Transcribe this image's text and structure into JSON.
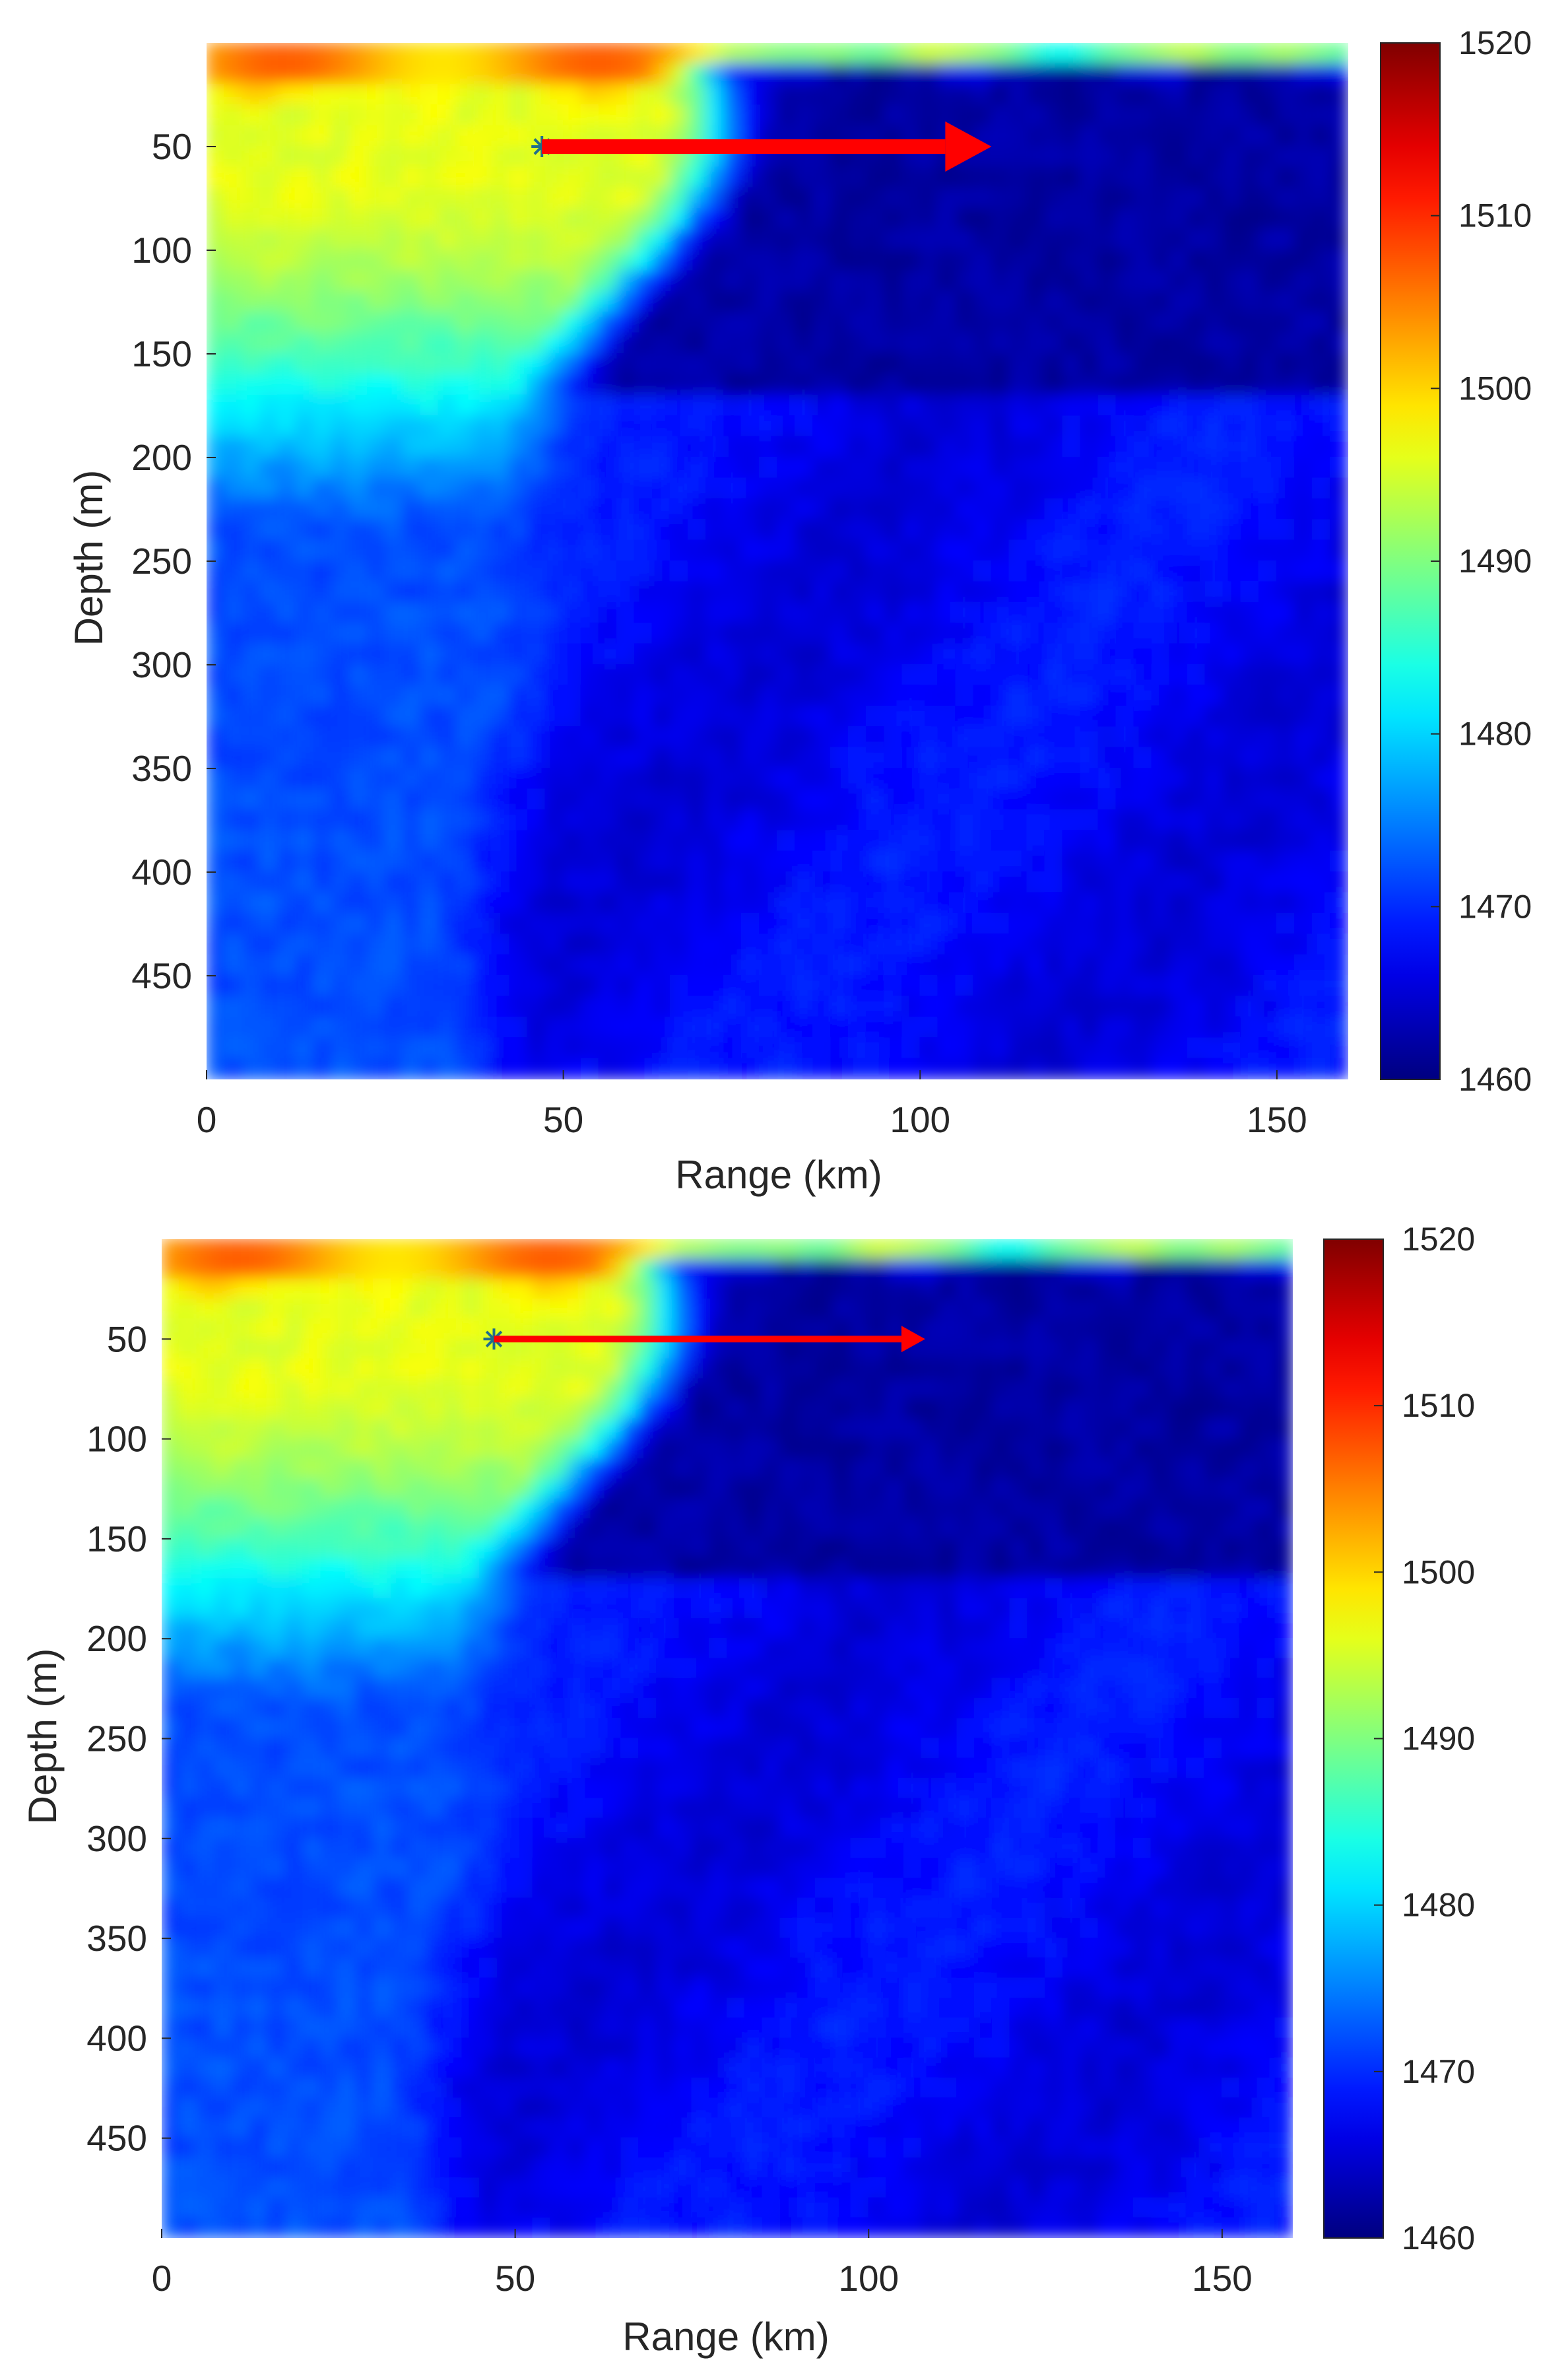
{
  "chart_data": [
    {
      "type": "heatmap",
      "xlabel": "Range (km)",
      "ylabel": "Depth (m)",
      "xlim": [
        0,
        160
      ],
      "ylim": [
        500,
        0
      ],
      "y_reversed": true,
      "x_ticks": [
        "0",
        "50",
        "100",
        "150"
      ],
      "x_tick_values": [
        0,
        50,
        100,
        150
      ],
      "y_ticks": [
        "50",
        "100",
        "150",
        "200",
        "250",
        "300",
        "350",
        "400",
        "450"
      ],
      "y_tick_values": [
        50,
        100,
        150,
        200,
        250,
        300,
        350,
        400,
        450
      ],
      "colorbar": {
        "colormap": "jet",
        "range": [
          1460,
          1520
        ],
        "ticks": [
          "1460",
          "1470",
          "1480",
          "1490",
          "1500",
          "1510",
          "1520"
        ],
        "tick_values": [
          1460,
          1470,
          1480,
          1490,
          1500,
          1510,
          1520
        ]
      },
      "field": {
        "surface_layer": {
          "depth_max": 25,
          "x_end": 75,
          "value": 1503
        },
        "warm_front": {
          "x_start": 0,
          "x_end": 70,
          "value_core": 1496
        },
        "cold_water": {
          "x_start": 70,
          "x_end": 160,
          "value": 1462
        },
        "deep_water": {
          "value": 1468
        }
      },
      "source_marker": {
        "x": 47,
        "y": 50,
        "symbol": "*",
        "color": "#1f6f8b"
      },
      "arrow": {
        "x_start": 47,
        "x_end": 110,
        "y": 50,
        "color": "#ff0000"
      }
    },
    {
      "type": "heatmap",
      "xlabel": "Range (km)",
      "ylabel": "Depth (m)",
      "xlim": [
        0,
        160
      ],
      "ylim": [
        500,
        0
      ],
      "y_reversed": true,
      "x_ticks": [
        "0",
        "50",
        "100",
        "150"
      ],
      "x_tick_values": [
        0,
        50,
        100,
        150
      ],
      "y_ticks": [
        "50",
        "100",
        "150",
        "200",
        "250",
        "300",
        "350",
        "400",
        "450"
      ],
      "y_tick_values": [
        50,
        100,
        150,
        200,
        250,
        300,
        350,
        400,
        450
      ],
      "colorbar": {
        "colormap": "jet",
        "range": [
          1460,
          1520
        ],
        "ticks": [
          "1460",
          "1470",
          "1480",
          "1490",
          "1500",
          "1510",
          "1520"
        ],
        "tick_values": [
          1460,
          1470,
          1480,
          1490,
          1500,
          1510,
          1520
        ]
      },
      "field": {
        "surface_layer": {
          "depth_max": 25,
          "x_end": 75,
          "value": 1503
        },
        "warm_front": {
          "x_start": 0,
          "x_end": 70,
          "value_core": 1496
        },
        "cold_water": {
          "x_start": 70,
          "x_end": 160,
          "value": 1462
        },
        "deep_water": {
          "value": 1468
        }
      },
      "source_marker": {
        "x": 47,
        "y": 50,
        "symbol": "*",
        "color": "#1f6f8b"
      },
      "arrow": {
        "x_start": 47,
        "x_end": 108,
        "y": 50,
        "color": "#ff0000"
      }
    }
  ]
}
